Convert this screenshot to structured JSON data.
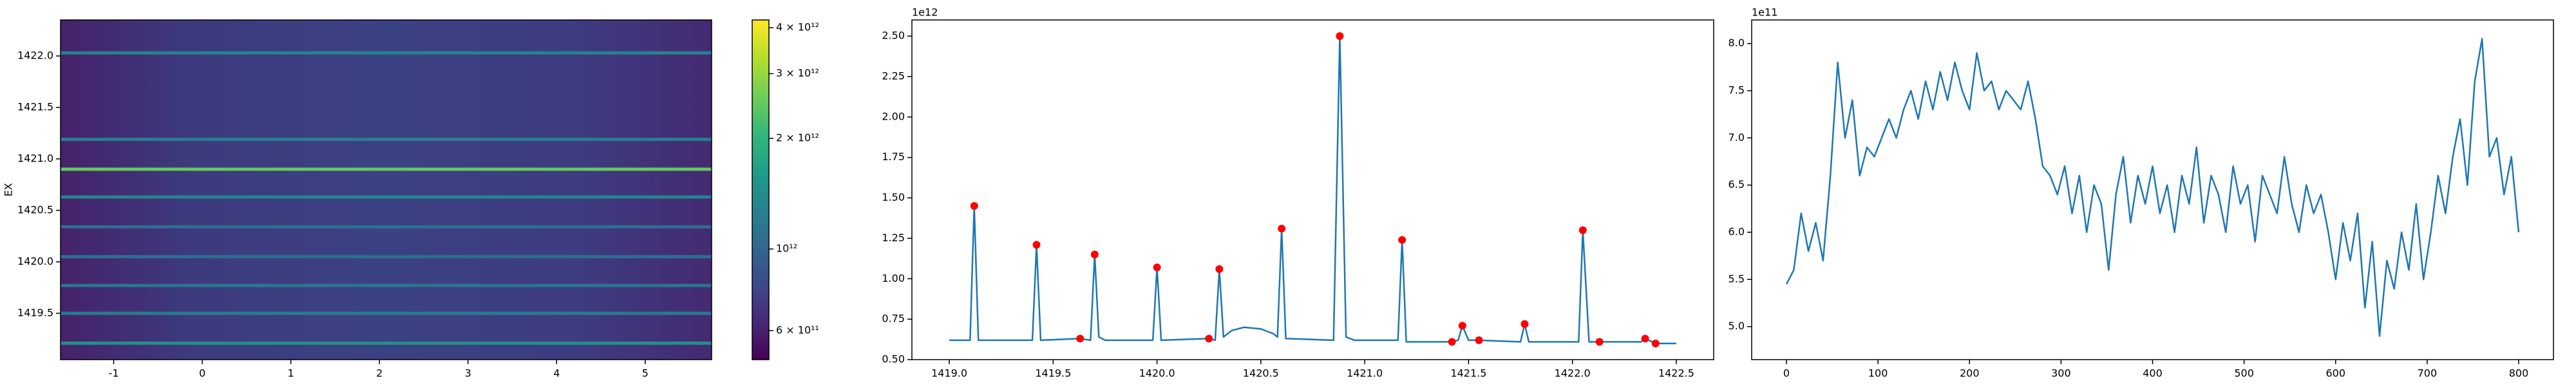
{
  "chart_data": [
    {
      "type": "heatmap",
      "ylabel": "EX",
      "xlim": [
        -1.6,
        5.75
      ],
      "xticks": [
        -1,
        0,
        1,
        2,
        3,
        4,
        5
      ],
      "ylim": [
        1419.05,
        1422.35
      ],
      "yticks": [
        1419.5,
        {
          "value": 1420,
          "label": "1420.0"
        },
        1420.5,
        {
          "value": 1421,
          "label": "1421.0"
        },
        1421.5,
        {
          "value": 1422,
          "label": "1422.0"
        }
      ],
      "rows": [
        1419.21,
        1419.5,
        1419.77,
        1420.05,
        1420.34,
        1420.63,
        1420.9,
        1421.19,
        1422.03
      ],
      "values": [
        1450000000000,
        1210000000000,
        1150000000000,
        1070000000000,
        1060000000000,
        1310000000000,
        2500000000000,
        1240000000000,
        1300000000000
      ],
      "colormap": "viridis",
      "colorbar": {
        "scale": "log",
        "lim": [
          500000000000,
          4200000000000
        ],
        "ticks": [
          {
            "value": 600000000000,
            "label": "6 × 10¹¹"
          },
          {
            "value": 1000000000000,
            "label": "10¹²"
          },
          {
            "value": 2000000000000,
            "label": "2 × 10¹²"
          },
          {
            "value": 3000000000000,
            "label": "3 × 10¹²"
          },
          {
            "value": 4000000000000,
            "label": "4 × 10¹²"
          }
        ]
      }
    },
    {
      "type": "line",
      "offset_text": "1e12",
      "xlim": [
        1418.82,
        1422.68
      ],
      "xticks": [
        {
          "value": 1419,
          "label": "1419.0"
        },
        1419.5,
        {
          "value": 1420,
          "label": "1420.0"
        },
        1420.5,
        {
          "value": 1421,
          "label": "1421.0"
        },
        1421.5,
        {
          "value": 1422,
          "label": "1422.0"
        },
        1422.5
      ],
      "ylim": [
        0.5,
        2.6
      ],
      "yticks": [
        {
          "value": 0.5,
          "label": "0.50"
        },
        {
          "value": 0.75,
          "label": "0.75"
        },
        {
          "value": 1,
          "label": "1.00"
        },
        {
          "value": 1.25,
          "label": "1.25"
        },
        {
          "value": 1.5,
          "label": "1.50"
        },
        {
          "value": 1.75,
          "label": "1.75"
        },
        {
          "value": 2,
          "label": "2.00"
        },
        {
          "value": 2.25,
          "label": "2.25"
        },
        {
          "value": 2.5,
          "label": "2.50"
        }
      ],
      "series": [
        {
          "color": "#1f77b4",
          "x": [
            1419.0,
            1419.1,
            1419.12,
            1419.14,
            1419.4,
            1419.42,
            1419.44,
            1419.63,
            1419.68,
            1419.7,
            1419.72,
            1419.75,
            1419.98,
            1420.0,
            1420.02,
            1420.25,
            1420.28,
            1420.3,
            1420.32,
            1420.36,
            1420.42,
            1420.5,
            1420.56,
            1420.58,
            1420.6,
            1420.62,
            1420.85,
            1420.88,
            1420.91,
            1420.95,
            1421.16,
            1421.18,
            1421.2,
            1421.42,
            1421.45,
            1421.47,
            1421.5,
            1421.55,
            1421.75,
            1421.77,
            1421.79,
            1422.03,
            1422.05,
            1422.08,
            1422.13,
            1422.33,
            1422.35,
            1422.4,
            1422.5
          ],
          "values": [
            0.62,
            0.62,
            1.45,
            0.62,
            0.62,
            1.21,
            0.62,
            0.63,
            0.62,
            1.15,
            0.64,
            0.62,
            0.62,
            1.07,
            0.62,
            0.63,
            0.62,
            1.06,
            0.64,
            0.68,
            0.7,
            0.69,
            0.66,
            0.64,
            1.31,
            0.63,
            0.62,
            2.5,
            0.64,
            0.62,
            0.62,
            1.24,
            0.61,
            0.61,
            0.62,
            0.71,
            0.62,
            0.62,
            0.61,
            0.72,
            0.61,
            0.61,
            1.3,
            0.61,
            0.61,
            0.61,
            0.63,
            0.6,
            0.6
          ]
        },
        {
          "type": "scatter",
          "color": "#ff0000",
          "x": [
            1419.12,
            1419.42,
            1419.63,
            1419.7,
            1420.0,
            1420.25,
            1420.3,
            1420.6,
            1420.88,
            1421.18,
            1421.42,
            1421.47,
            1421.55,
            1421.77,
            1422.05,
            1422.13,
            1422.35,
            1422.4
          ],
          "values": [
            1.45,
            1.21,
            0.63,
            1.15,
            1.07,
            0.63,
            1.06,
            1.31,
            2.5,
            1.24,
            0.61,
            0.71,
            0.62,
            0.72,
            1.3,
            0.61,
            0.63,
            0.6
          ]
        }
      ]
    },
    {
      "type": "line",
      "offset_text": "1e11",
      "xlim": [
        -38,
        838
      ],
      "xticks": [
        0,
        100,
        200,
        300,
        400,
        500,
        600,
        700,
        800
      ],
      "ylim": [
        4.65,
        8.25
      ],
      "yticks": [
        {
          "value": 5,
          "label": "5.0"
        },
        5.5,
        {
          "value": 6,
          "label": "6.0"
        },
        6.5,
        {
          "value": 7,
          "label": "7.0"
        },
        7.5,
        {
          "value": 8,
          "label": "8.0"
        }
      ],
      "series": [
        {
          "color": "#1f77b4",
          "x": [
            0,
            8,
            16,
            24,
            32,
            40,
            48,
            56,
            64,
            72,
            80,
            88,
            96,
            104,
            112,
            120,
            128,
            136,
            144,
            152,
            160,
            168,
            176,
            184,
            192,
            200,
            208,
            216,
            224,
            232,
            240,
            248,
            256,
            264,
            272,
            280,
            288,
            296,
            304,
            312,
            320,
            328,
            336,
            344,
            352,
            360,
            368,
            376,
            384,
            392,
            400,
            408,
            416,
            424,
            432,
            440,
            448,
            456,
            464,
            472,
            480,
            488,
            496,
            504,
            512,
            520,
            528,
            536,
            544,
            552,
            560,
            568,
            576,
            584,
            592,
            600,
            608,
            616,
            624,
            632,
            640,
            648,
            656,
            664,
            672,
            680,
            688,
            696,
            704,
            712,
            720,
            728,
            736,
            744,
            752,
            760,
            768,
            776,
            784,
            792,
            800
          ],
          "values": [
            5.45,
            5.6,
            6.2,
            5.8,
            6.1,
            5.7,
            6.6,
            7.8,
            7.0,
            7.4,
            6.6,
            6.9,
            6.8,
            7.0,
            7.2,
            7.0,
            7.3,
            7.5,
            7.2,
            7.6,
            7.3,
            7.7,
            7.4,
            7.8,
            7.5,
            7.3,
            7.9,
            7.5,
            7.6,
            7.3,
            7.5,
            7.4,
            7.3,
            7.6,
            7.2,
            6.7,
            6.6,
            6.4,
            6.7,
            6.2,
            6.6,
            6.0,
            6.5,
            6.3,
            5.6,
            6.4,
            6.8,
            6.1,
            6.6,
            6.3,
            6.7,
            6.2,
            6.5,
            6.0,
            6.6,
            6.3,
            6.9,
            6.1,
            6.6,
            6.4,
            6.0,
            6.7,
            6.3,
            6.5,
            5.9,
            6.6,
            6.4,
            6.2,
            6.8,
            6.3,
            6.0,
            6.5,
            6.2,
            6.4,
            6.0,
            5.5,
            6.1,
            5.7,
            6.2,
            5.2,
            5.9,
            4.9,
            5.7,
            5.4,
            6.0,
            5.6,
            6.3,
            5.5,
            6.0,
            6.6,
            6.2,
            6.8,
            7.2,
            6.5,
            7.6,
            8.05,
            6.8,
            7.0,
            6.4,
            6.8,
            6.0
          ]
        }
      ]
    }
  ]
}
